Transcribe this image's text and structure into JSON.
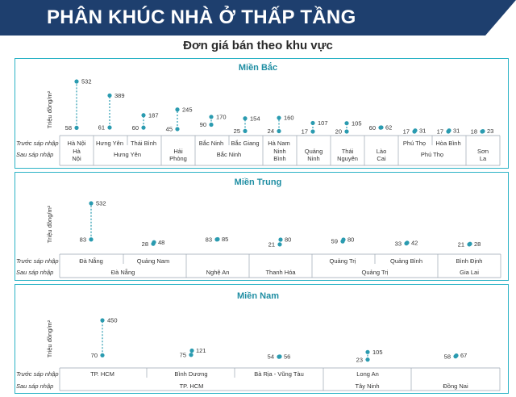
{
  "header": {
    "title": "PHÂN KHÚC NHÀ Ở THẤP TẦNG"
  },
  "subtitle": "Đơn giá bán theo khu vực",
  "colors": {
    "banner": "#1e3f6e",
    "accent": "#2a9bb0",
    "panel_border": "#2bb3c6",
    "title": "#1f8ea3"
  },
  "chart_data": [
    {
      "type": "dot-plot",
      "title": "Miền Bắc",
      "ylabel": "Triệu đồng/m²",
      "row_labels": [
        "Trước sáp nhập",
        "Sau sáp nhập"
      ],
      "before": [
        {
          "name": "Hà Nội",
          "low": 58,
          "high": 532
        },
        {
          "name": "Hưng Yên",
          "low": 61,
          "high": 389
        },
        {
          "name": "Thái Bình",
          "low": 60,
          "high": 187
        },
        {
          "name": "",
          "low": 45,
          "high": 245
        },
        {
          "name": "Bắc Ninh",
          "low": 90,
          "high": 170
        },
        {
          "name": "Bắc Giang",
          "low": 25,
          "high": 154
        },
        {
          "name": "Hà Nam",
          "low": 24,
          "high": 160
        },
        {
          "name": "",
          "low": 17,
          "high": 107
        },
        {
          "name": "",
          "low": 20,
          "high": 105
        },
        {
          "name": "",
          "low": 60,
          "high": 62
        },
        {
          "name": "Phú Thọ",
          "low": 17,
          "high": 31
        },
        {
          "name": "Hòa Bình",
          "low": 17,
          "high": 31
        },
        {
          "name": "",
          "low": 18,
          "high": 23
        }
      ],
      "after": [
        "Hà Nội",
        "Hưng Yên",
        "Hải Phòng",
        "Bắc Ninh",
        "Ninh Bình",
        "Quảng Ninh",
        "Thái Nguyên",
        "Lào Cai",
        "Phú Thọ",
        "Sơn La"
      ]
    },
    {
      "type": "dot-plot",
      "title": "Miền Trung",
      "ylabel": "Triệu đồng/m²",
      "row_labels": [
        "Trước sáp nhập",
        "Sau sáp nhập"
      ],
      "before": [
        {
          "name": "Đà Nẵng",
          "low": 83,
          "high": 532
        },
        {
          "name": "Quảng Nam",
          "low": 28,
          "high": 48
        },
        {
          "name": "",
          "low": 83,
          "high": 85
        },
        {
          "name": "",
          "low": 21,
          "high": 80
        },
        {
          "name": "Quảng Trị",
          "low": 59,
          "high": 80
        },
        {
          "name": "Quảng Bình",
          "low": 33,
          "high": 42
        },
        {
          "name": "Bình Định",
          "low": 21,
          "high": 28
        }
      ],
      "after": [
        "Đà Nẵng",
        "Nghệ An",
        "Thanh Hóa",
        "Quảng Trị",
        "Gia Lai"
      ]
    },
    {
      "type": "dot-plot",
      "title": "Miền Nam",
      "ylabel": "Triệu đồng/m²",
      "row_labels": [
        "Trước sáp nhập",
        "Sau sáp nhập"
      ],
      "before": [
        {
          "name": "TP. HCM",
          "low": 70,
          "high": 450
        },
        {
          "name": "Bình Dương",
          "low": 75,
          "high": 121
        },
        {
          "name": "Bà Rịa - Vũng Tàu",
          "low": 54,
          "high": 56
        },
        {
          "name": "Long An",
          "low": 23,
          "high": 105
        },
        {
          "name": "",
          "low": 58,
          "high": 67
        }
      ],
      "after": [
        "TP. HCM",
        "Tây Ninh",
        "Đồng Nai"
      ]
    }
  ]
}
